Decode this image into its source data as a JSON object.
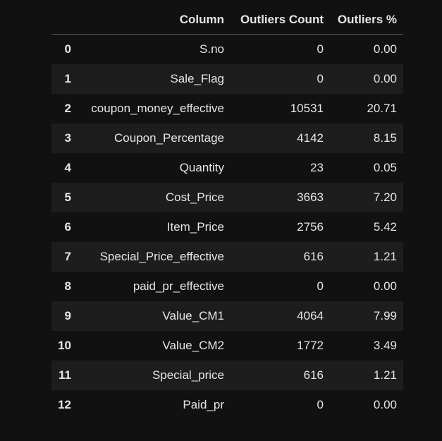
{
  "table": {
    "headers": {
      "index": "",
      "column": "Column",
      "count": "Outliers Count",
      "percent": "Outliers %"
    },
    "rows": [
      {
        "index": "0",
        "column": "S.no",
        "count": "0",
        "percent": "0.00"
      },
      {
        "index": "1",
        "column": "Sale_Flag",
        "count": "0",
        "percent": "0.00"
      },
      {
        "index": "2",
        "column": "coupon_money_effective",
        "count": "10531",
        "percent": "20.71"
      },
      {
        "index": "3",
        "column": "Coupon_Percentage",
        "count": "4142",
        "percent": "8.15"
      },
      {
        "index": "4",
        "column": "Quantity",
        "count": "23",
        "percent": "0.05"
      },
      {
        "index": "5",
        "column": "Cost_Price",
        "count": "3663",
        "percent": "7.20"
      },
      {
        "index": "6",
        "column": "Item_Price",
        "count": "2756",
        "percent": "5.42"
      },
      {
        "index": "7",
        "column": "Special_Price_effective",
        "count": "616",
        "percent": "1.21"
      },
      {
        "index": "8",
        "column": "paid_pr_effective",
        "count": "0",
        "percent": "0.00"
      },
      {
        "index": "9",
        "column": "Value_CM1",
        "count": "4064",
        "percent": "7.99"
      },
      {
        "index": "10",
        "column": "Value_CM2",
        "count": "1772",
        "percent": "3.49"
      },
      {
        "index": "11",
        "column": "Special_price",
        "count": "616",
        "percent": "1.21"
      },
      {
        "index": "12",
        "column": "Paid_pr",
        "count": "0",
        "percent": "0.00"
      }
    ]
  }
}
